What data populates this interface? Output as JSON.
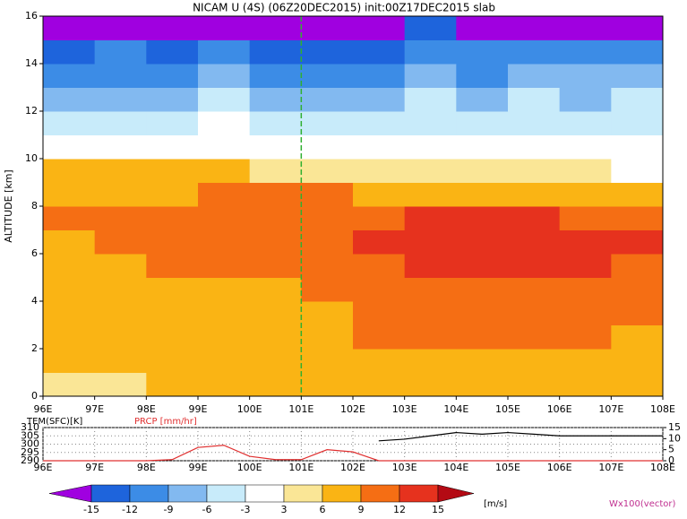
{
  "chart_data": [
    {
      "type": "heatmap",
      "title": "NICAM U (4S) (06Z20DEC2015) init:00Z17DEC2015 slab",
      "ylabel": "ALTITUDE [km]",
      "x": [
        96.5,
        97.5,
        98.5,
        99.5,
        100.5,
        101.5,
        102.5,
        103.5,
        104.5,
        105.5,
        106.5,
        107.5
      ],
      "y": [
        0.5,
        1.5,
        2.5,
        3.5,
        4.5,
        5.5,
        6.5,
        7.5,
        8.5,
        9.5,
        10.5,
        11.5,
        12.5,
        13.5,
        14.5,
        15.5
      ],
      "values": [
        [
          5,
          5,
          7,
          7,
          7,
          7,
          7,
          7,
          7,
          8,
          7,
          7
        ],
        [
          6,
          7,
          7,
          7,
          7,
          7,
          8,
          8,
          8,
          8,
          8,
          7
        ],
        [
          7,
          7,
          7,
          8,
          7,
          8,
          9,
          10,
          10,
          10,
          9,
          8
        ],
        [
          7,
          7,
          8,
          8,
          8,
          8,
          10,
          10,
          10,
          10,
          10,
          9
        ],
        [
          7,
          8,
          8,
          8,
          8,
          9,
          10,
          11,
          11,
          11,
          11,
          10
        ],
        [
          8,
          8,
          9,
          10,
          9,
          10,
          11,
          13,
          13,
          13,
          12,
          11
        ],
        [
          8,
          9,
          10,
          10,
          10,
          11,
          12,
          13,
          13,
          13,
          13,
          12
        ],
        [
          9,
          10,
          10,
          10,
          10,
          11,
          11,
          12,
          13,
          12,
          11,
          10
        ],
        [
          8,
          8,
          8,
          9,
          9,
          9,
          8,
          8,
          8,
          7,
          7,
          7
        ],
        [
          7,
          7,
          6,
          6,
          5,
          4,
          4,
          4,
          4,
          3,
          3,
          2
        ],
        [
          1,
          1,
          0,
          0,
          -1,
          0,
          -2,
          -1,
          -2,
          -2,
          -3,
          -2
        ],
        [
          -4,
          -4,
          -4,
          -3,
          -5,
          -5,
          -5,
          -4,
          -5,
          -4,
          -5,
          -4
        ],
        [
          -8,
          -7,
          -7,
          -6,
          -7,
          -8,
          -7,
          -6,
          -7,
          -6,
          -7,
          -6
        ],
        [
          -10,
          -10,
          -10,
          -9,
          -10,
          -10,
          -10,
          -9,
          -10,
          -9,
          -9,
          -9
        ],
        [
          -13,
          -12,
          -13,
          -12,
          -13,
          -13,
          -13,
          -12,
          -12,
          -12,
          -12,
          -12
        ],
        [
          -16,
          -16,
          -16,
          -16,
          -16,
          -16,
          -16,
          -15,
          -16,
          -16,
          -16,
          -16
        ]
      ],
      "xlim": [
        96,
        108
      ],
      "xticks": [
        {
          "value": 96,
          "label": "96E"
        },
        {
          "value": 97,
          "label": "97E"
        },
        {
          "value": 98,
          "label": "98E"
        },
        {
          "value": 99,
          "label": "99E"
        },
        {
          "value": 100,
          "label": "100E"
        },
        {
          "value": 101,
          "label": "101E"
        },
        {
          "value": 102,
          "label": "102E"
        },
        {
          "value": 103,
          "label": "103E"
        },
        {
          "value": 104,
          "label": "104E"
        },
        {
          "value": 105,
          "label": "105E"
        },
        {
          "value": 106,
          "label": "106E"
        },
        {
          "value": 107,
          "label": "107E"
        },
        {
          "value": 108,
          "label": "108E"
        }
      ],
      "ylim": [
        0,
        16
      ],
      "yticks": [
        0,
        2,
        4,
        6,
        8,
        10,
        12,
        14,
        16
      ],
      "levels": [
        -15,
        -12,
        -9,
        -6,
        -3,
        3,
        6,
        9,
        12,
        15
      ],
      "colors": [
        "#a000e0",
        "#1e64dc",
        "#3c8ce6",
        "#82b9f0",
        "#c8ebfa",
        "#ffffff",
        "#fae696",
        "#fab414",
        "#f56e14",
        "#e6321e",
        "#b40a14",
        "#f014a0"
      ],
      "colorbar_unit": "[m/s]",
      "vector_label": "Wx100(vector)"
    },
    {
      "type": "line",
      "ylabel": "TEM(SFC)[K]",
      "y2label": "PRCP [mm/hr]",
      "x": [
        96,
        96.5,
        97,
        97.5,
        98,
        98.5,
        99,
        99.5,
        100,
        100.5,
        101,
        101.5,
        102,
        102.5,
        103,
        103.5,
        104,
        104.5,
        105,
        105.5,
        106,
        106.5,
        107,
        107.5,
        108
      ],
      "series": [
        {
          "name": "TEM(SFC)",
          "color": "#000000",
          "values": [
            null,
            null,
            null,
            null,
            null,
            null,
            null,
            null,
            null,
            null,
            null,
            null,
            null,
            302,
            303,
            305,
            307,
            306,
            307,
            306,
            305,
            305,
            305,
            305,
            305
          ]
        },
        {
          "name": "PRCP",
          "color": "#e03030",
          "axis": "y2",
          "values": [
            0,
            0,
            0,
            0,
            0,
            0.5,
            6,
            7,
            2,
            0.5,
            0.5,
            5,
            4,
            0,
            0,
            0,
            0,
            0,
            0,
            0,
            0,
            0,
            0,
            0,
            0
          ]
        }
      ],
      "xlim": [
        96,
        108
      ],
      "xticks": [
        {
          "value": 96,
          "label": "96E"
        },
        {
          "value": 97,
          "label": "97E"
        },
        {
          "value": 98,
          "label": "98E"
        },
        {
          "value": 99,
          "label": "99E"
        },
        {
          "value": 100,
          "label": "100E"
        },
        {
          "value": 101,
          "label": "101E"
        },
        {
          "value": 102,
          "label": "102E"
        },
        {
          "value": 103,
          "label": "103E"
        },
        {
          "value": 104,
          "label": "104E"
        },
        {
          "value": 105,
          "label": "105E"
        },
        {
          "value": 106,
          "label": "106E"
        },
        {
          "value": 107,
          "label": "107E"
        },
        {
          "value": 108,
          "label": "108E"
        }
      ],
      "ylim": [
        290,
        310
      ],
      "yticks": [
        290,
        295,
        300,
        305,
        310
      ],
      "y2lim": [
        0,
        15
      ],
      "y2ticks": [
        0,
        5,
        10,
        15
      ]
    }
  ]
}
